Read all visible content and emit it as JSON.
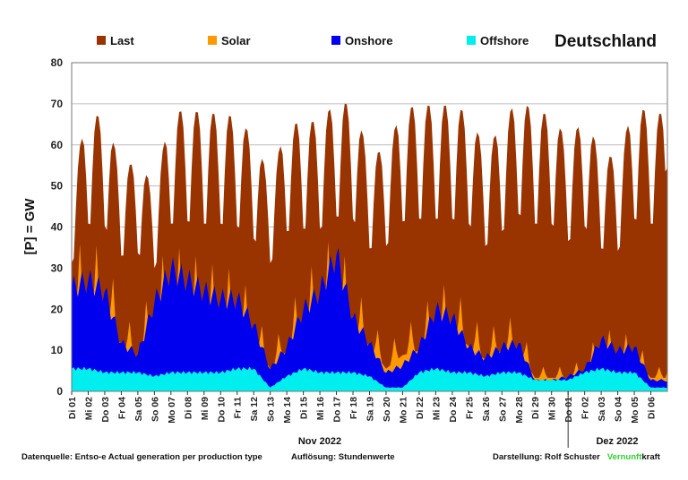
{
  "chart_data": {
    "type": "area",
    "title": "Deutschland",
    "ylabel": "[P] = GW",
    "ylim": [
      0,
      80
    ],
    "yticks": [
      "0",
      "10",
      "20",
      "30",
      "40",
      "50",
      "60",
      "70",
      "80"
    ],
    "grid": true,
    "legend_position": "top",
    "colors": {
      "Last": "#993300",
      "Solar": "#ff9900",
      "Onshore": "#0000ee",
      "Offshore": "#00eeee"
    },
    "categories": [
      "Di 01",
      "Mi 02",
      "Do 03",
      "Fr 04",
      "Sa 05",
      "So 06",
      "Mo 07",
      "Di 08",
      "Mi 09",
      "Do 10",
      "Fr 11",
      "Sa 12",
      "So 13",
      "Mo 14",
      "Di 15",
      "Mi 16",
      "Do 17",
      "Fr 18",
      "Sa 19",
      "So 20",
      "Mo 21",
      "Di 22",
      "Mi 23",
      "Do 24",
      "Fr 25",
      "Sa 26",
      "So 27",
      "Mo 28",
      "Di 29",
      "Mi 30",
      "Do 01",
      "Fr 02",
      "Sa 03",
      "So 04",
      "Mo 05",
      "Di 06"
    ],
    "month_labels": [
      "Nov 2022",
      "Dez 2022"
    ],
    "series": [
      {
        "name": "Last",
        "values": [
          52,
          68,
          67,
          55,
          56,
          50,
          68,
          69,
          68,
          68,
          67,
          62,
          52,
          65,
          66,
          66,
          71,
          70,
          58,
          59,
          69,
          70,
          70,
          70,
          68,
          59,
          65,
          72,
          68,
          68,
          61,
          67,
          58,
          57,
          70,
          68
        ]
      },
      {
        "name": "Solar",
        "values": [
          36,
          36,
          35,
          20,
          14,
          30,
          36,
          34,
          32,
          30,
          30,
          22,
          10,
          18,
          28,
          33,
          40,
          26,
          20,
          10,
          16,
          18,
          26,
          26,
          20,
          14,
          18,
          18,
          6,
          6,
          6,
          8,
          16,
          14,
          14,
          6
        ]
      },
      {
        "name": "Onshore",
        "values": [
          28,
          30,
          27,
          13,
          10,
          24,
          33,
          30,
          27,
          25,
          25,
          18,
          6,
          12,
          22,
          27,
          37,
          20,
          13,
          5,
          7,
          12,
          22,
          20,
          12,
          9,
          12,
          13,
          3,
          3,
          4,
          6,
          14,
          11,
          12,
          3
        ]
      },
      {
        "name": "Offshore",
        "values": [
          6,
          6,
          5,
          5,
          5,
          4,
          5,
          5,
          5,
          5,
          6,
          6,
          1,
          4,
          6,
          5,
          5,
          5,
          4,
          1,
          1,
          5,
          6,
          5,
          5,
          4,
          5,
          5,
          3,
          3,
          3,
          5,
          6,
          5,
          5,
          1
        ]
      }
    ]
  },
  "footer": {
    "source": "Datenquelle: Entso-e  Actual generation per production type",
    "resolution": "Auflösung: Stundenwerte",
    "author_prefix": "Darstellung:  Rolf Schuster",
    "brand_part1": "Vernunft",
    "brand_part2": "kraft"
  }
}
